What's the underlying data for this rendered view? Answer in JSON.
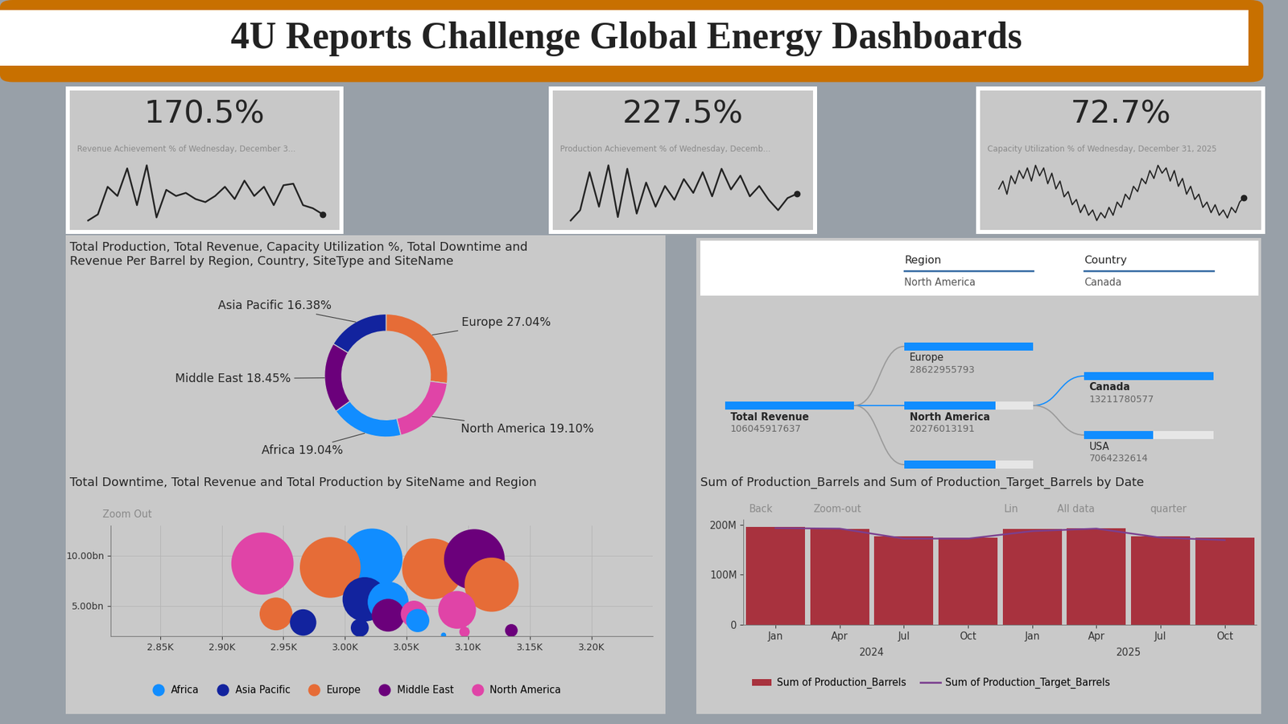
{
  "title": "4U Reports Challenge Global Energy Dashboards",
  "chart_data": [
    {
      "type": "kpi",
      "title": "Revenue Achievement % of Wednesday, December 3...",
      "value": 170.5,
      "value_label": "170.5%",
      "values": [
        150,
        170,
        260,
        230,
        320,
        200,
        330,
        160,
        250,
        230,
        240,
        220,
        210,
        230,
        260,
        220,
        280,
        230,
        260,
        200,
        265,
        270,
        200,
        190
      ],
      "color": "#222222",
      "tick_labels": false
    },
    {
      "type": "kpi",
      "title": "Production Achievement % of Wednesday, Decemb...",
      "value": 227.5,
      "value_label": "227.5%",
      "values": [
        150,
        180,
        290,
        190,
        310,
        160,
        300,
        170,
        260,
        190,
        250,
        210,
        270,
        230,
        290,
        220,
        300,
        240,
        280,
        220,
        250,
        210,
        180,
        215
      ],
      "color": "#222222",
      "tick_labels": false
    },
    {
      "type": "kpi",
      "title": "Capacity Utilization % of Wednesday, December 31, 2025",
      "value": 72.7,
      "value_label": "72.7%",
      "values": [
        76,
        79,
        74,
        81,
        78,
        83,
        80,
        84,
        79,
        85,
        81,
        84,
        78,
        82,
        76,
        79,
        73,
        75,
        70,
        72,
        67,
        70,
        66,
        68,
        64,
        67,
        65,
        69,
        66,
        71,
        69,
        74,
        72,
        77,
        75,
        80,
        78,
        83,
        80,
        85,
        82,
        84,
        79,
        83,
        77,
        80,
        74,
        77,
        72,
        74,
        69,
        71,
        67,
        70,
        66,
        68,
        65,
        69,
        67,
        71
      ],
      "color": "#222222",
      "tick_labels": false
    },
    {
      "type": "pie",
      "title": "Total Production, Total Revenue, Capacity Utilization %, Total Downtime and Revenue Per Barrel by Region, Country, SiteType and SiteName",
      "values": [
        27.04,
        19.1,
        19.04,
        18.45,
        16.38
      ],
      "value_labels": [
        "Europe 27.04%",
        "North America 19.10%",
        "Africa 19.04%",
        "Middle East 18.45%",
        "Asia Pacific 16.38%"
      ],
      "colors": [
        "#e66c37",
        "#e044a7",
        "#118dff",
        "#6b007b",
        "#12239e"
      ],
      "data_labels": true
    },
    {
      "type": "scatter",
      "title": "Total Downtime, Total Revenue and Total Production by SiteName and Region",
      "toolbar": [
        "Zoom Out"
      ],
      "xlim": [
        2810,
        3250
      ],
      "ylim": [
        2000000000,
        13000000000
      ],
      "xticks": [
        {
          "value": 2850,
          "label": "2.85K"
        },
        {
          "value": 2900,
          "label": "2.90K"
        },
        {
          "value": 2950,
          "label": "2.95K"
        },
        {
          "value": 3000,
          "label": "3.00K"
        },
        {
          "value": 3050,
          "label": "3.05K"
        },
        {
          "value": 3100,
          "label": "3.10K"
        },
        {
          "value": 3150,
          "label": "3.15K"
        },
        {
          "value": 3200,
          "label": "3.20K"
        }
      ],
      "yticks": [
        {
          "value": 5000000000,
          "label": "5.00bn"
        },
        {
          "value": 10000000000,
          "label": "10.00bn"
        }
      ],
      "grid": true,
      "legend": "bottom",
      "series": [
        {
          "name": "Africa",
          "color": "#118dff",
          "x": [
            3022,
            3035,
            3059,
            3080
          ],
          "y": [
            9670000000,
            5390000000,
            3550000000,
            2100000000
          ],
          "size": [
            137,
            62,
            20,
            1
          ]
        },
        {
          "name": "Asia Pacific",
          "color": "#12239e",
          "x": [
            3016,
            2966,
            3012
          ],
          "y": [
            5660000000,
            3360000000,
            2830000000
          ],
          "size": [
            73,
            26,
            12
          ]
        },
        {
          "name": "Europe",
          "color": "#e66c37",
          "x": [
            2988,
            3071,
            3119,
            2944
          ],
          "y": [
            8820000000,
            8680000000,
            7110000000,
            4210000000
          ],
          "size": [
            137,
            137,
            109,
            40
          ]
        },
        {
          "name": "Middle East",
          "color": "#6b007b",
          "x": [
            3105,
            3035,
            3135
          ],
          "y": [
            9610000000,
            4080000000,
            2570000000
          ],
          "size": [
            137,
            40,
            6
          ]
        },
        {
          "name": "North America",
          "color": "#e044a7",
          "x": [
            2933,
            3091,
            3056,
            3097
          ],
          "y": [
            9210000000,
            4610000000,
            4210000000,
            2430000000
          ],
          "size": [
            144,
            53,
            26,
            4
          ]
        }
      ]
    },
    {
      "type": "tree",
      "color": "#118dff",
      "filters": [
        {
          "field": "Region",
          "value": "North America"
        },
        {
          "field": "Country",
          "value": "Canada"
        }
      ],
      "root": {
        "label": "Total Revenue",
        "value": 106045917637,
        "children": [
          {
            "label": "Europe",
            "value": 28622955793
          },
          {
            "label": "North America",
            "value": 20276013191,
            "children": [
              {
                "label": "Canada",
                "value": 13211780577
              },
              {
                "label": "USA",
                "value": 7064232614
              }
            ]
          },
          {
            "label": null,
            "value": 20190000000
          }
        ]
      }
    },
    {
      "type": "bar",
      "title": "Sum of Production_Barrels and Sum of Production_Target_Barrels by Date",
      "toolbar": [
        "Back",
        "Zoom-out",
        "Lin",
        "All data",
        "quarter"
      ],
      "categories": [
        "Jan",
        "Apr",
        "Jul",
        "Oct",
        "Jan",
        "Apr",
        "Jul",
        "Oct"
      ],
      "groups": [
        {
          "name": "2024",
          "count": 4
        },
        {
          "name": "2025",
          "count": 4
        }
      ],
      "ylim": [
        0,
        210000000
      ],
      "yticks": [
        0,
        {
          "value": 100000000,
          "label": "100M"
        },
        {
          "value": 200000000,
          "label": "200M"
        }
      ],
      "grid": false,
      "legend": "bottom",
      "series": [
        {
          "name": "Sum of Production_Barrels",
          "type": "bar",
          "color": "#a8323e",
          "values": [
            195000000,
            192000000,
            176000000,
            174000000,
            192000000,
            193000000,
            176000000,
            174000000
          ]
        },
        {
          "name": "Sum of Production_Target_Barrels",
          "type": "line",
          "color": "#7b3f8f",
          "values": [
            193000000,
            192000000,
            172000000,
            172000000,
            187000000,
            192000000,
            174000000,
            169000000
          ]
        }
      ]
    }
  ]
}
